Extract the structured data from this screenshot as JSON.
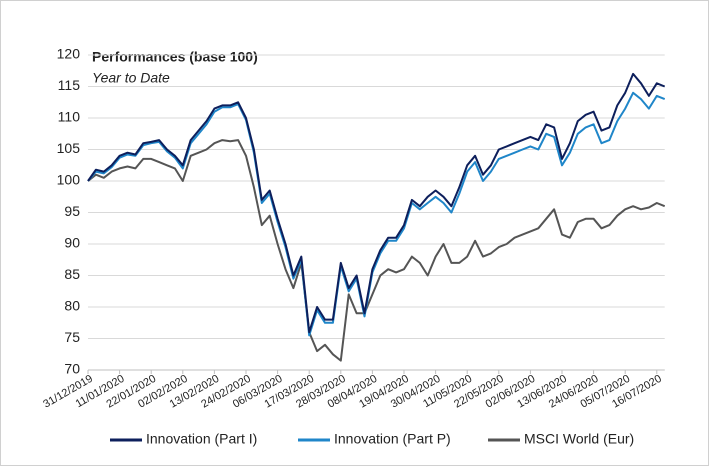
{
  "chart_data": {
    "type": "line",
    "title": "Performances (base 100)",
    "subtitle": "Year to Date",
    "categories": [
      "31/12/2019",
      null,
      null,
      null,
      "11/01/2020",
      null,
      null,
      null,
      "22/01/2020",
      null,
      null,
      null,
      "02/02/2020",
      null,
      null,
      null,
      "13/02/2020",
      null,
      null,
      null,
      "24/02/2020",
      null,
      null,
      null,
      "06/03/2020",
      null,
      null,
      null,
      "17/03/2020",
      null,
      null,
      null,
      "28/03/2020",
      null,
      null,
      null,
      "08/04/2020",
      null,
      null,
      null,
      "19/04/2020",
      null,
      null,
      null,
      "30/04/2020",
      null,
      null,
      null,
      "11/05/2020",
      null,
      null,
      null,
      "22/05/2020",
      null,
      null,
      null,
      "02/06/2020",
      null,
      null,
      null,
      "13/06/2020",
      null,
      null,
      null,
      "24/06/2020",
      null,
      null,
      null,
      "05/07/2020",
      null,
      null,
      null,
      "16/07/2020",
      null
    ],
    "series": [
      {
        "name": "Innovation (Part I)",
        "color": "#0d1f5c",
        "values": [
          100,
          101.8,
          101.5,
          102.5,
          104,
          104.5,
          104.2,
          106,
          106.2,
          106.5,
          105,
          104,
          102.5,
          106.5,
          108,
          109.5,
          111.5,
          112,
          112,
          112.5,
          110,
          105,
          97,
          98.5,
          94,
          90,
          85,
          88,
          76,
          80,
          78,
          78,
          87,
          83,
          85,
          79,
          86,
          89,
          91,
          91,
          93,
          97,
          96,
          97.5,
          98.5,
          97.5,
          96,
          99,
          102.5,
          104,
          101,
          102.5,
          105,
          105.5,
          106,
          106.5,
          107,
          106.5,
          109,
          108.5,
          103.5,
          106,
          109.5,
          110.5,
          111,
          108,
          108.5,
          112,
          114,
          117,
          115.5,
          113.5,
          115.5,
          115
        ]
      },
      {
        "name": "Innovation (Part P)",
        "color": "#1f86c9",
        "values": [
          100,
          101.5,
          101.2,
          102.2,
          103.7,
          104.2,
          104,
          105.7,
          106,
          106.2,
          104.7,
          103.7,
          102,
          106,
          107.5,
          109,
          111,
          111.7,
          111.7,
          112.2,
          109.7,
          104.5,
          96.5,
          98,
          93.5,
          89.5,
          84.5,
          87.5,
          75.5,
          79.5,
          77.5,
          77.5,
          86.5,
          82.5,
          84.5,
          78.5,
          85.5,
          88.5,
          90.5,
          90.5,
          92.5,
          96.5,
          95.5,
          96.5,
          97.5,
          96.5,
          95,
          98,
          101.5,
          103,
          100,
          101.5,
          103.5,
          104,
          104.5,
          105,
          105.5,
          105,
          107.5,
          107,
          102.5,
          104.5,
          107.5,
          108.5,
          109,
          106,
          106.5,
          109.5,
          111.5,
          114,
          113,
          111.5,
          113.5,
          113
        ]
      },
      {
        "name": "MSCI World (Eur)",
        "color": "#555555",
        "values": [
          100,
          101,
          100.5,
          101.5,
          102,
          102.3,
          102,
          103.5,
          103.5,
          103,
          102.5,
          102,
          100,
          104,
          104.5,
          105,
          106,
          106.5,
          106.3,
          106.5,
          104,
          99,
          93,
          94.5,
          90,
          86,
          83,
          87,
          76,
          73,
          74,
          72.5,
          71.5,
          82,
          79,
          79,
          82,
          85,
          86,
          85.5,
          86,
          88,
          87,
          85,
          88,
          90,
          87,
          87,
          88,
          90.5,
          88,
          88.5,
          89.5,
          90,
          91,
          91.5,
          92,
          92.5,
          94,
          95.5,
          91.5,
          91,
          93.5,
          94,
          94,
          92.5,
          93,
          94.5,
          95.5,
          96,
          95.5,
          95.8,
          96.5,
          96
        ]
      }
    ],
    "ylim": [
      70,
      120
    ],
    "yticks": [
      70,
      75,
      80,
      85,
      90,
      95,
      100,
      105,
      110,
      115,
      120
    ],
    "grid": true
  }
}
